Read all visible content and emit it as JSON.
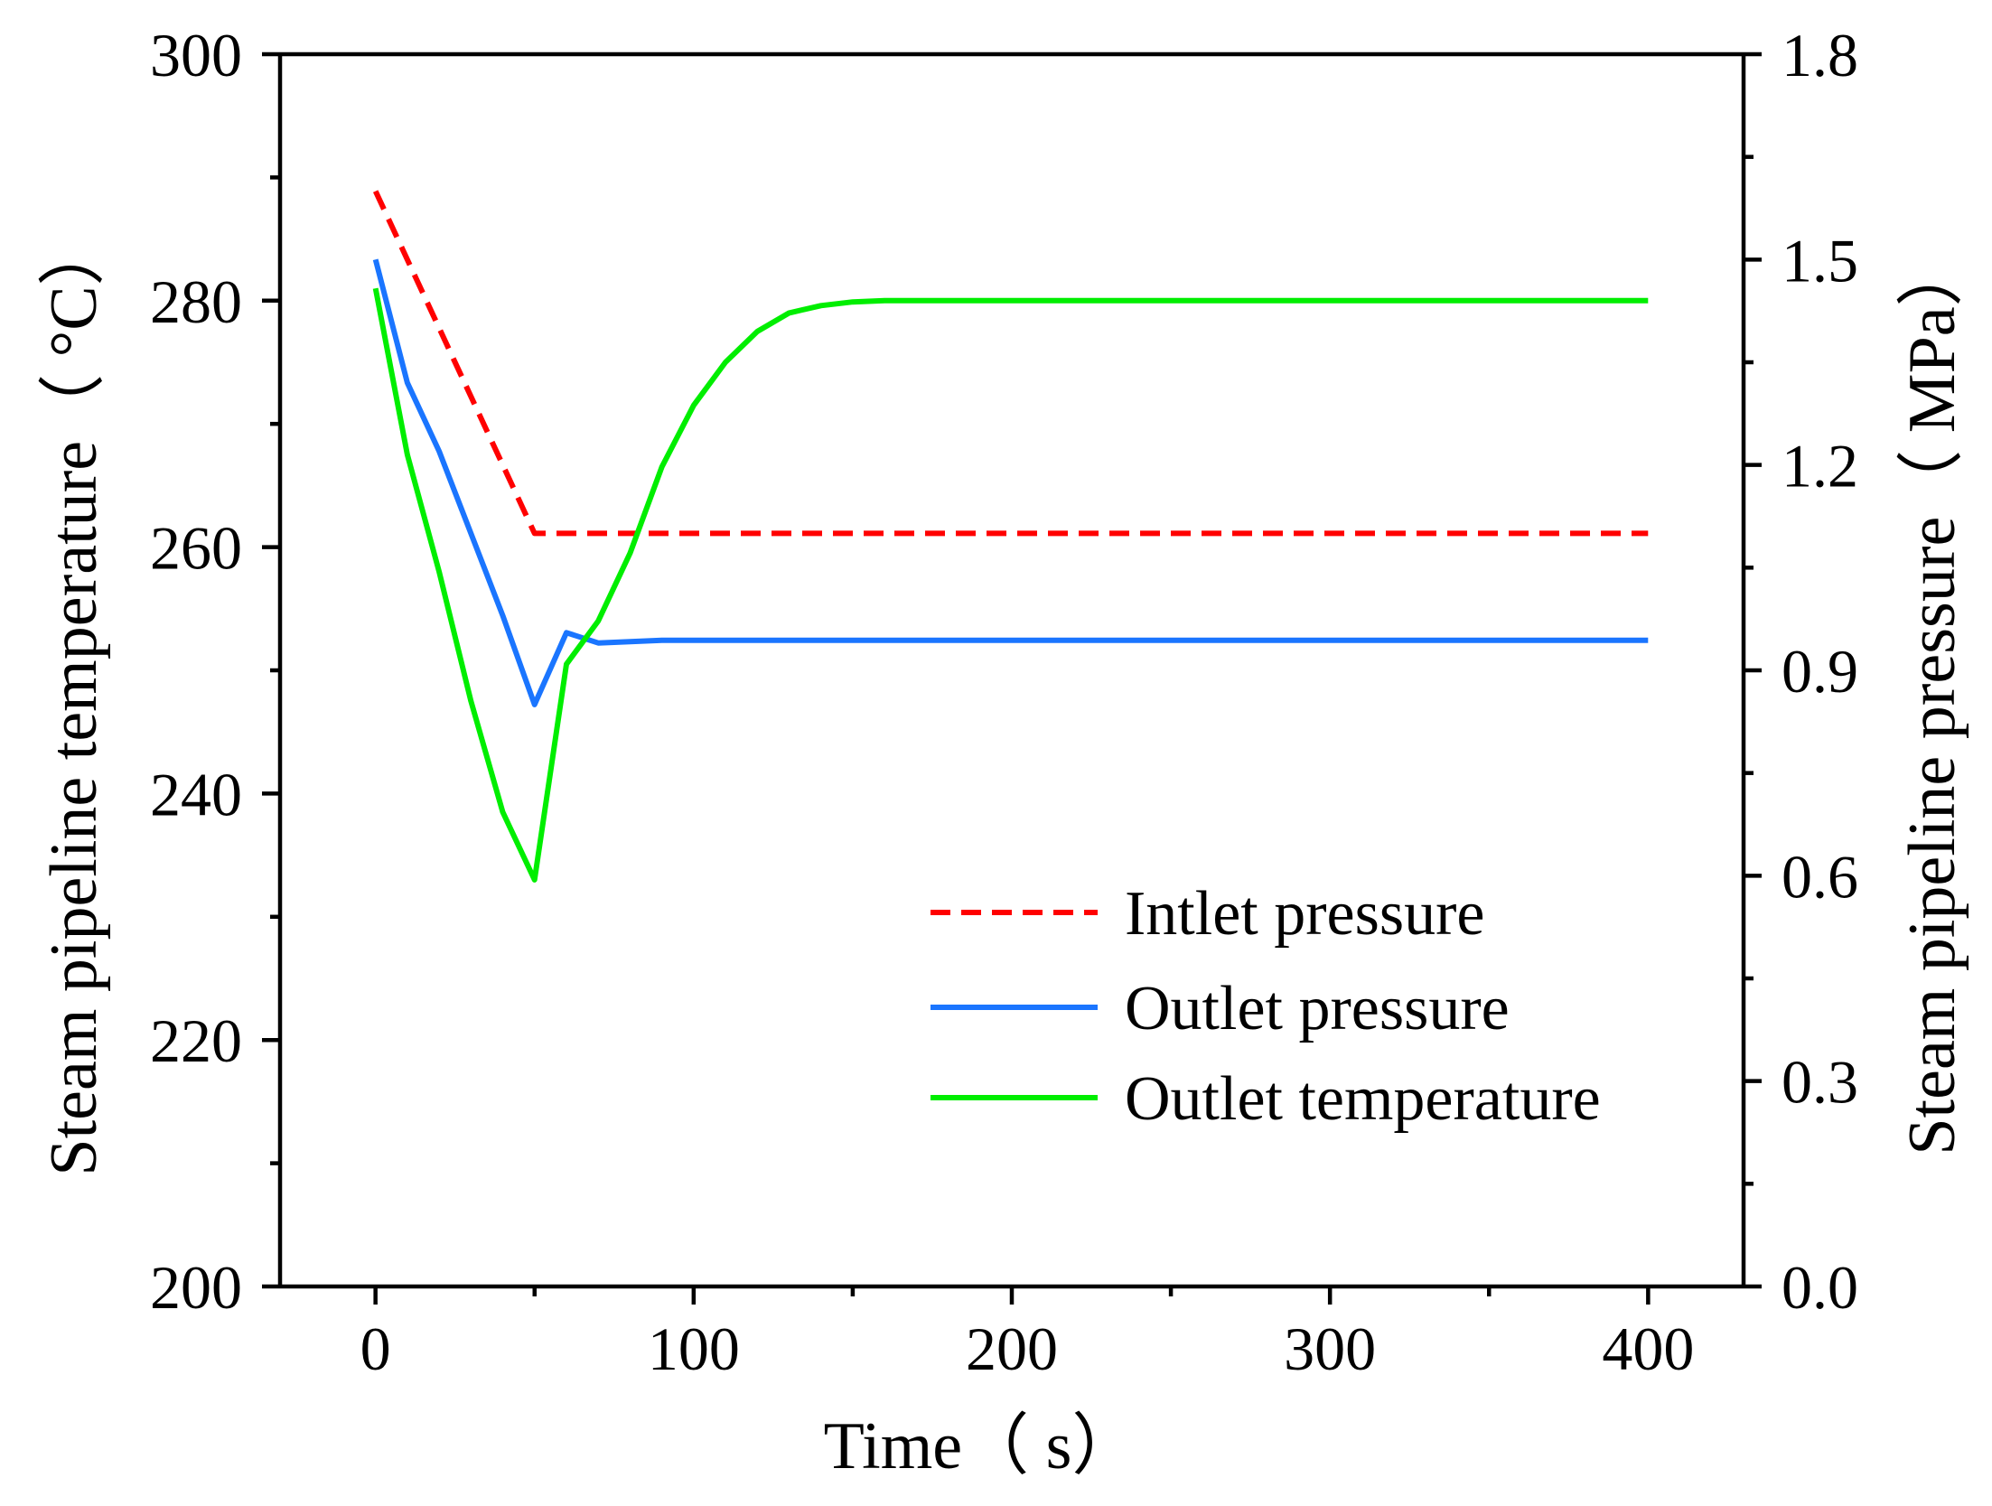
{
  "chart_data": {
    "type": "line",
    "title": "",
    "xlabel": "Time（ s）",
    "ylabel_left": "Steam pipeline temperature（ °C）",
    "ylabel_right": "Steam pipeline pressure（ MPa）",
    "xlim": [
      -30,
      430
    ],
    "ylim_left": [
      200,
      300
    ],
    "ylim_right": [
      0.0,
      1.8
    ],
    "x_ticks": [
      0,
      100,
      200,
      300,
      400
    ],
    "x_tick_labels": [
      "0",
      "100",
      "200",
      "300",
      "400"
    ],
    "x_minor_ticks": [
      50,
      150,
      250,
      350
    ],
    "y_left_ticks": [
      200,
      220,
      240,
      260,
      280,
      300
    ],
    "y_left_tick_labels": [
      "200",
      "220",
      "240",
      "260",
      "280",
      "300"
    ],
    "y_left_minor_ticks": [
      210,
      230,
      250,
      270,
      290
    ],
    "y_right_ticks": [
      0.0,
      0.3,
      0.6,
      0.9,
      1.2,
      1.5,
      1.8
    ],
    "y_right_tick_labels": [
      "0.0",
      "0.3",
      "0.6",
      "0.9",
      "1.2",
      "1.5",
      "1.8"
    ],
    "y_right_minor_ticks": [
      0.15,
      0.45,
      0.75,
      1.05,
      1.35,
      1.65
    ],
    "grid": false,
    "legend_position": "bottom-right",
    "series": [
      {
        "name": "Intlet pressure",
        "axis": "right",
        "color": "#ff0000",
        "style": "dashed",
        "x": [
          0,
          50,
          60,
          100,
          200,
          300,
          400
        ],
        "y": [
          1.6,
          1.1,
          1.1,
          1.1,
          1.1,
          1.1,
          1.1
        ]
      },
      {
        "name": "Outlet pressure",
        "axis": "right",
        "color": "#1a75ff",
        "style": "solid",
        "x": [
          0,
          10,
          20,
          30,
          40,
          50,
          60,
          70,
          80,
          90,
          100,
          150,
          200,
          300,
          400
        ],
        "y": [
          1.5,
          1.32,
          1.22,
          1.1,
          0.98,
          0.85,
          0.955,
          0.94,
          0.942,
          0.944,
          0.944,
          0.944,
          0.944,
          0.944,
          0.944
        ]
      },
      {
        "name": "Outlet temperature",
        "axis": "left",
        "color": "#00ee00",
        "style": "solid",
        "x": [
          0,
          10,
          20,
          30,
          40,
          50,
          60,
          70,
          80,
          90,
          100,
          110,
          120,
          130,
          140,
          150,
          160,
          180,
          200,
          300,
          400
        ],
        "y": [
          281,
          267.5,
          258,
          247.5,
          238.5,
          233,
          250.5,
          254,
          259.5,
          266.5,
          271.5,
          275,
          277.5,
          279,
          279.6,
          279.9,
          280,
          280,
          280,
          280,
          280
        ]
      }
    ]
  }
}
